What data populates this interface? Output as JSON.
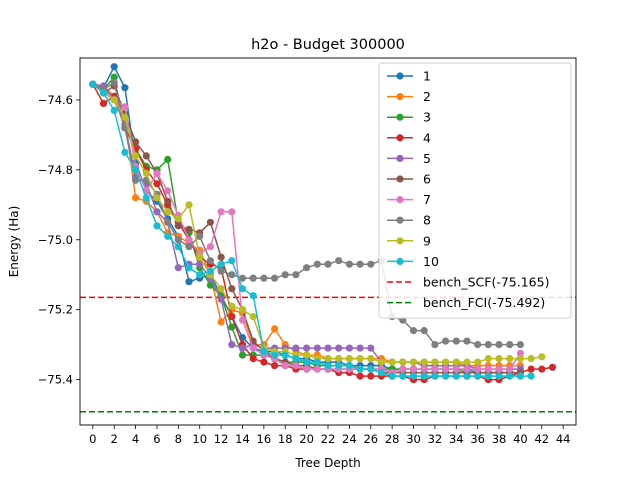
{
  "chart_data": {
    "type": "line",
    "title": "h2o - Budget  300000",
    "xlabel": "Tree Depth",
    "ylabel": "Energy (Ha)",
    "xlim": [
      -1.2,
      45.2
    ],
    "ylim": [
      -75.53,
      -74.48
    ],
    "xticks": [
      0,
      2,
      4,
      6,
      8,
      10,
      12,
      14,
      16,
      18,
      20,
      22,
      24,
      26,
      28,
      30,
      32,
      34,
      36,
      38,
      40,
      42,
      44
    ],
    "xtick_labels": [
      "0",
      "2",
      "4",
      "6",
      "8",
      "10",
      "12",
      "14",
      "16",
      "18",
      "20",
      "22",
      "24",
      "26",
      "28",
      "30",
      "32",
      "34",
      "36",
      "38",
      "40",
      "42",
      "44"
    ],
    "yticks": [
      -74.6,
      -74.8,
      -75.0,
      -75.2,
      -75.4
    ],
    "ytick_labels": [
      "−74.6",
      "−74.8",
      "−75.0",
      "−75.2",
      "−75.4"
    ],
    "grid": false,
    "legend_position": "top-right",
    "series": [
      {
        "name": "1",
        "color": "#1f77b4",
        "x": [
          0,
          1,
          2,
          3,
          4,
          5,
          6,
          7,
          8,
          9,
          10,
          11,
          12,
          13,
          14,
          15,
          16,
          17,
          18,
          19,
          20,
          21,
          22,
          23,
          24,
          25,
          26,
          27,
          28,
          29,
          30,
          31,
          32,
          33,
          34,
          35,
          36,
          37,
          38
        ],
        "y": [
          -74.555,
          -74.565,
          -74.505,
          -74.565,
          -74.78,
          -74.86,
          -74.89,
          -74.94,
          -74.99,
          -75.12,
          -75.11,
          -75.1,
          -75.16,
          -75.22,
          -75.28,
          -75.31,
          -75.32,
          -75.32,
          -75.33,
          -75.34,
          -75.34,
          -75.35,
          -75.35,
          -75.35,
          -75.36,
          -75.36,
          -75.36,
          -75.36,
          -75.37,
          -75.37,
          -75.37,
          -75.37,
          -75.37,
          -75.37,
          -75.37,
          -75.37,
          -75.38,
          -75.38,
          -75.38
        ]
      },
      {
        "name": "2",
        "color": "#ff7f0e",
        "x": [
          0,
          1,
          2,
          3,
          4,
          5,
          6,
          7,
          8,
          9,
          10,
          11,
          12,
          13,
          14,
          15,
          16,
          17,
          18,
          19,
          20,
          21,
          22,
          23,
          24,
          25,
          26,
          27,
          28,
          29,
          30,
          31,
          32,
          33,
          34,
          35,
          36,
          37,
          38,
          39,
          40
        ],
        "y": [
          -74.555,
          -74.56,
          -74.59,
          -74.65,
          -74.88,
          -74.89,
          -74.92,
          -74.98,
          -74.99,
          -75.01,
          -75.03,
          -75.1,
          -75.235,
          -75.2,
          -75.21,
          -75.3,
          -75.3,
          -75.255,
          -75.3,
          -75.32,
          -75.33,
          -75.33,
          -75.34,
          -75.34,
          -75.34,
          -75.34,
          -75.34,
          -75.34,
          -75.35,
          -75.35,
          -75.35,
          -75.35,
          -75.35,
          -75.35,
          -75.35,
          -75.36,
          -75.36,
          -75.36,
          -75.36,
          -75.36,
          -75.36
        ]
      },
      {
        "name": "3",
        "color": "#2ca02c",
        "x": [
          0,
          1,
          2,
          3,
          4,
          5,
          6,
          7,
          8,
          9,
          10,
          11,
          12,
          13,
          14,
          15,
          16,
          17,
          18,
          19,
          20,
          21,
          22,
          23,
          24,
          25,
          26,
          27,
          28,
          29,
          30,
          31,
          32,
          33,
          34,
          35,
          36,
          37,
          38,
          39,
          40
        ],
        "y": [
          -74.555,
          -74.57,
          -74.535,
          -74.68,
          -74.74,
          -74.79,
          -74.8,
          -74.77,
          -74.95,
          -74.98,
          -75.08,
          -75.13,
          -75.16,
          -75.25,
          -75.33,
          -75.33,
          -75.33,
          -75.34,
          -75.35,
          -75.35,
          -75.35,
          -75.36,
          -75.36,
          -75.36,
          -75.36,
          -75.37,
          -75.37,
          -75.37,
          -75.37,
          -75.37,
          -75.37,
          -75.37,
          -75.37,
          -75.37,
          -75.37,
          -75.38,
          -75.38,
          -75.38,
          -75.38,
          -75.38,
          -75.38
        ]
      },
      {
        "name": "4",
        "color": "#d62728",
        "x": [
          0,
          1,
          2,
          3,
          4,
          5,
          6,
          7,
          8,
          9,
          10,
          11,
          12,
          13,
          14,
          15,
          16,
          17,
          18,
          19,
          20,
          21,
          22,
          23,
          24,
          25,
          26,
          27,
          28,
          29,
          30,
          31,
          32,
          33,
          34,
          35,
          36,
          37,
          38,
          39,
          40,
          41,
          42,
          43
        ],
        "y": [
          -74.555,
          -74.61,
          -74.59,
          -74.68,
          -74.74,
          -74.8,
          -74.84,
          -74.9,
          -74.95,
          -75.0,
          -75.05,
          -75.07,
          -75.08,
          -75.22,
          -75.3,
          -75.34,
          -75.35,
          -75.36,
          -75.36,
          -75.37,
          -75.37,
          -75.37,
          -75.37,
          -75.38,
          -75.38,
          -75.39,
          -75.39,
          -75.39,
          -75.39,
          -75.39,
          -75.4,
          -75.4,
          -75.39,
          -75.39,
          -75.39,
          -75.39,
          -75.39,
          -75.4,
          -75.4,
          -75.39,
          -75.38,
          -75.37,
          -75.37,
          -75.365
        ]
      },
      {
        "name": "5",
        "color": "#9467bd",
        "x": [
          0,
          1,
          2,
          3,
          4,
          5,
          6,
          7,
          8,
          9,
          10,
          11,
          12,
          13,
          14,
          15,
          16,
          17,
          18,
          19,
          20,
          21,
          22,
          23,
          24,
          25,
          26,
          27,
          28,
          29,
          30,
          31,
          32,
          33,
          34,
          35,
          36,
          37,
          38,
          39,
          40
        ],
        "y": [
          -74.555,
          -74.56,
          -74.6,
          -74.67,
          -74.82,
          -74.84,
          -74.92,
          -74.95,
          -75.08,
          -75.07,
          -75.07,
          -75.11,
          -75.17,
          -75.3,
          -75.31,
          -75.3,
          -75.31,
          -75.31,
          -75.31,
          -75.31,
          -75.31,
          -75.31,
          -75.31,
          -75.31,
          -75.31,
          -75.31,
          -75.31,
          -75.35,
          -75.35,
          -75.35,
          -75.35,
          -75.36,
          -75.36,
          -75.36,
          -75.36,
          -75.36,
          -75.37,
          -75.37,
          -75.37,
          -75.37,
          -75.37
        ]
      },
      {
        "name": "6",
        "color": "#8c564b",
        "x": [
          0,
          1,
          2,
          3,
          4,
          5,
          6,
          7,
          8,
          9,
          10,
          11,
          12,
          13,
          14,
          15,
          16,
          17,
          18,
          19,
          20,
          21,
          22,
          23,
          24,
          25,
          26,
          27,
          28,
          29,
          30,
          31,
          32,
          33,
          34,
          35,
          36,
          37,
          38,
          39,
          40
        ],
        "y": [
          -74.555,
          -74.58,
          -74.56,
          -74.64,
          -74.72,
          -74.76,
          -74.81,
          -74.89,
          -74.96,
          -74.97,
          -74.98,
          -74.95,
          -75.05,
          -75.14,
          -75.2,
          -75.29,
          -75.32,
          -75.34,
          -75.35,
          -75.36,
          -75.36,
          -75.37,
          -75.37,
          -75.37,
          -75.37,
          -75.37,
          -75.37,
          -75.38,
          -75.38,
          -75.38,
          -75.38,
          -75.38,
          -75.38,
          -75.38,
          -75.38,
          -75.38,
          -75.38,
          -75.38,
          -75.38,
          -75.38,
          -75.38
        ]
      },
      {
        "name": "7",
        "color": "#e377c2",
        "x": [
          0,
          1,
          2,
          3,
          4,
          5,
          6,
          7,
          8,
          9,
          10,
          11,
          12,
          13,
          14,
          15,
          16,
          17,
          18,
          19,
          20,
          21,
          22,
          23,
          24,
          25,
          26,
          27,
          28,
          29,
          30,
          31,
          32,
          33,
          34,
          35,
          36,
          37,
          38,
          39,
          40
        ],
        "y": [
          -74.555,
          -74.57,
          -74.6,
          -74.62,
          -74.79,
          -74.86,
          -74.81,
          -74.86,
          -74.93,
          -75.0,
          -75.04,
          -75.02,
          -74.92,
          -74.92,
          -75.23,
          -75.31,
          -75.33,
          -75.34,
          -75.36,
          -75.36,
          -75.37,
          -75.37,
          -75.37,
          -75.37,
          -75.37,
          -75.37,
          -75.37,
          -75.37,
          -75.38,
          -75.37,
          -75.37,
          -75.37,
          -75.37,
          -75.37,
          -75.37,
          -75.37,
          -75.37,
          -75.37,
          -75.37,
          -75.37,
          -75.325
        ]
      },
      {
        "name": "8",
        "color": "#7f7f7f",
        "x": [
          0,
          1,
          2,
          3,
          4,
          5,
          6,
          7,
          8,
          9,
          10,
          11,
          12,
          13,
          14,
          15,
          16,
          17,
          18,
          19,
          20,
          21,
          22,
          23,
          24,
          25,
          26,
          27,
          28,
          29,
          30,
          31,
          32,
          33,
          34,
          35,
          36,
          37,
          38,
          39,
          40
        ],
        "y": [
          -74.555,
          -74.57,
          -74.55,
          -74.68,
          -74.83,
          -74.83,
          -74.87,
          -74.95,
          -75.0,
          -75.02,
          -74.99,
          -75.06,
          -75.09,
          -75.1,
          -75.11,
          -75.11,
          -75.11,
          -75.11,
          -75.1,
          -75.1,
          -75.08,
          -75.07,
          -75.07,
          -75.06,
          -75.07,
          -75.07,
          -75.07,
          -75.06,
          -75.22,
          -75.23,
          -75.26,
          -75.26,
          -75.3,
          -75.29,
          -75.29,
          -75.29,
          -75.3,
          -75.3,
          -75.3,
          -75.3,
          -75.3
        ]
      },
      {
        "name": "9",
        "color": "#bcbd22",
        "x": [
          0,
          1,
          2,
          3,
          4,
          5,
          6,
          7,
          8,
          9,
          10,
          11,
          12,
          13,
          14,
          15,
          16,
          17,
          18,
          19,
          20,
          21,
          22,
          23,
          24,
          25,
          26,
          27,
          28,
          29,
          30,
          31,
          32,
          33,
          34,
          35,
          36,
          37,
          38,
          39,
          40,
          41,
          42
        ],
        "y": [
          -74.555,
          -74.58,
          -74.6,
          -74.65,
          -74.76,
          -74.81,
          -74.88,
          -74.92,
          -74.94,
          -74.9,
          -75.05,
          -75.1,
          -75.14,
          -75.19,
          -75.2,
          -75.22,
          -75.31,
          -75.32,
          -75.32,
          -75.33,
          -75.33,
          -75.34,
          -75.34,
          -75.34,
          -75.34,
          -75.34,
          -75.34,
          -75.35,
          -75.35,
          -75.35,
          -75.35,
          -75.35,
          -75.35,
          -75.35,
          -75.35,
          -75.35,
          -75.35,
          -75.34,
          -75.34,
          -75.34,
          -75.34,
          -75.34,
          -75.335
        ]
      },
      {
        "name": "10",
        "color": "#17becf",
        "x": [
          0,
          1,
          2,
          3,
          4,
          5,
          6,
          7,
          8,
          9,
          10,
          11,
          12,
          13,
          14,
          15,
          16,
          17,
          18,
          19,
          20,
          21,
          22,
          23,
          24,
          25,
          26,
          27,
          28,
          29,
          30,
          31,
          32,
          33,
          34,
          35,
          36,
          37,
          38,
          39,
          40,
          41
        ],
        "y": [
          -74.555,
          -74.58,
          -74.63,
          -74.75,
          -74.8,
          -74.88,
          -74.96,
          -74.99,
          -75.02,
          -75.08,
          -75.1,
          -75.09,
          -75.07,
          -75.06,
          -75.14,
          -75.16,
          -75.32,
          -75.33,
          -75.33,
          -75.34,
          -75.35,
          -75.35,
          -75.36,
          -75.36,
          -75.36,
          -75.37,
          -75.37,
          -75.38,
          -75.39,
          -75.39,
          -75.39,
          -75.39,
          -75.39,
          -75.39,
          -75.39,
          -75.39,
          -75.39,
          -75.39,
          -75.39,
          -75.39,
          -75.39,
          -75.39
        ]
      }
    ],
    "reference_lines": [
      {
        "name": "bench_SCF(-75.165)",
        "y": -75.165,
        "color": "#ff0000",
        "style": "dashed"
      },
      {
        "name": "bench_FCI(-75.492)",
        "y": -75.492,
        "color": "#008000",
        "style": "dashed"
      }
    ]
  }
}
